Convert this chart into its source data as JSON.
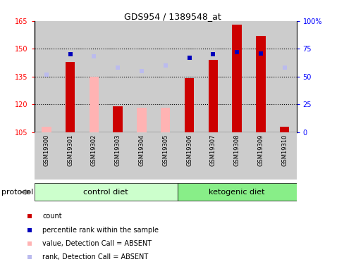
{
  "title": "GDS954 / 1389548_at",
  "samples": [
    "GSM19300",
    "GSM19301",
    "GSM19302",
    "GSM19303",
    "GSM19304",
    "GSM19305",
    "GSM19306",
    "GSM19307",
    "GSM19308",
    "GSM19309",
    "GSM19310"
  ],
  "count_values": [
    108,
    143,
    135,
    119,
    118,
    118,
    134,
    144,
    163,
    157,
    108
  ],
  "absent_flags": [
    true,
    false,
    true,
    false,
    true,
    true,
    false,
    false,
    false,
    false,
    false
  ],
  "percentile_values": [
    52,
    70,
    68,
    58,
    55,
    60,
    67,
    70,
    72,
    71,
    58
  ],
  "absent_rank_flags": [
    true,
    false,
    true,
    true,
    true,
    true,
    false,
    false,
    false,
    false,
    true
  ],
  "ylim_left": [
    105,
    165
  ],
  "ylim_right": [
    0,
    100
  ],
  "yticks_left": [
    105,
    120,
    135,
    150,
    165
  ],
  "yticks_right": [
    0,
    25,
    50,
    75,
    100
  ],
  "ytick_labels_right": [
    "0",
    "25",
    "50",
    "75",
    "100%"
  ],
  "color_red_bar": "#CC0000",
  "color_pink_bar": "#FFB3B3",
  "color_blue_square": "#0000BB",
  "color_blue_light_square": "#BBBBEE",
  "color_control_bg": "#CCFFCC",
  "color_ketogenic_bg": "#88EE88",
  "color_sample_bg": "#CCCCCC",
  "bar_width": 0.4,
  "legend_items": [
    [
      "#CC0000",
      "count"
    ],
    [
      "#0000BB",
      "percentile rank within the sample"
    ],
    [
      "#FFB3B3",
      "value, Detection Call = ABSENT"
    ],
    [
      "#BBBBEE",
      "rank, Detection Call = ABSENT"
    ]
  ]
}
